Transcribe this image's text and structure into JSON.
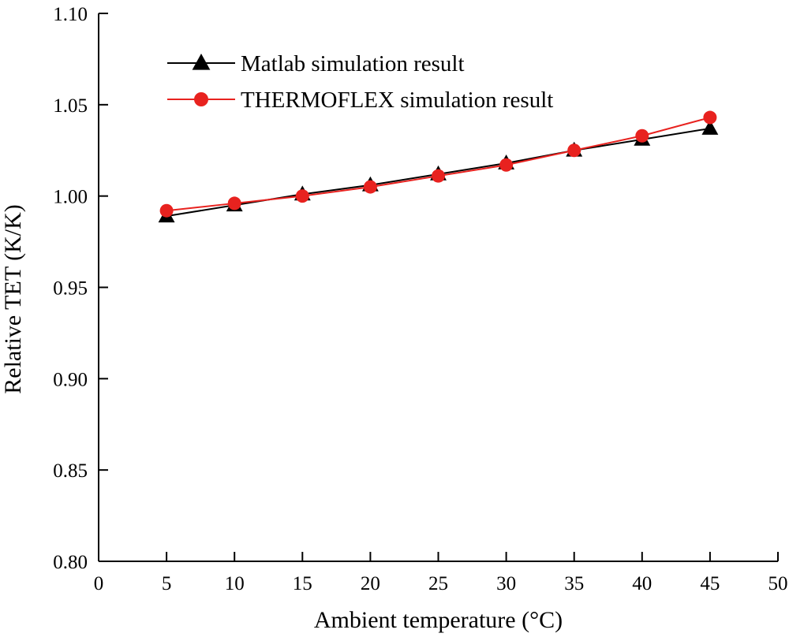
{
  "chart_data": {
    "type": "line",
    "title": "",
    "xlabel": "Ambient temperature (°C)",
    "ylabel": "Relative TET (K/K)",
    "xlim": [
      0,
      50
    ],
    "ylim": [
      0.8,
      1.1
    ],
    "x_ticks": [
      0,
      5,
      10,
      15,
      20,
      25,
      30,
      35,
      40,
      45,
      50
    ],
    "y_ticks": [
      0.8,
      0.85,
      0.9,
      0.95,
      1.0,
      1.05,
      1.1
    ],
    "x_tick_labels": [
      "0",
      "5",
      "10",
      "15",
      "20",
      "25",
      "30",
      "35",
      "40",
      "45",
      "50"
    ],
    "y_tick_labels": [
      "0.80",
      "0.85",
      "0.90",
      "0.95",
      "1.00",
      "1.05",
      "1.10"
    ],
    "grid": false,
    "legend_position": "top-left",
    "x": [
      5,
      10,
      15,
      20,
      25,
      30,
      35,
      40,
      45
    ],
    "series": [
      {
        "name": "Matlab simulation result",
        "marker": "triangle",
        "color": "#000000",
        "values": [
          0.989,
          0.995,
          1.001,
          1.006,
          1.012,
          1.018,
          1.025,
          1.031,
          1.037
        ]
      },
      {
        "name": "THERMOFLEX simulation result",
        "marker": "circle",
        "color": "#e8221f",
        "values": [
          0.992,
          0.996,
          1.0,
          1.005,
          1.011,
          1.017,
          1.025,
          1.033,
          1.043
        ]
      }
    ]
  }
}
